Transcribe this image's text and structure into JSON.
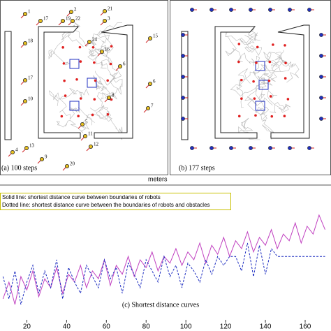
{
  "panels": [
    {
      "caption": "(a)  100 steps",
      "robot_labels": [
        "1",
        "17",
        "19",
        "2",
        "22",
        "21",
        "3",
        "24",
        "16",
        "18",
        "15",
        "17",
        "6",
        "6",
        "10",
        "8",
        "7",
        "5",
        "11",
        "12",
        "13",
        "4",
        "9",
        "20"
      ]
    },
    {
      "caption": "(b) 177 steps"
    }
  ],
  "axis_unit": "meters",
  "chart_data": {
    "type": "line",
    "title": "(c) Shortest distance curves",
    "x": [
      8,
      11,
      14,
      17,
      20,
      23,
      26,
      29,
      32,
      35,
      38,
      41,
      44,
      47,
      50,
      53,
      56,
      59,
      62,
      65,
      68,
      71,
      74,
      77,
      80,
      83,
      86,
      89,
      92,
      95,
      98,
      101,
      104,
      107,
      110,
      113,
      116,
      119,
      122,
      125,
      128,
      131,
      134,
      137,
      140,
      143,
      146,
      149,
      152,
      155,
      158,
      161,
      164,
      167,
      170
    ],
    "series": [
      {
        "name": "Solid line: shortest distance curve between boundaries of robots",
        "color": "#c040c0",
        "style": "solid",
        "values": [
          20,
          35,
          15,
          40,
          28,
          45,
          22,
          38,
          30,
          48,
          25,
          42,
          35,
          50,
          30,
          45,
          38,
          55,
          32,
          50,
          42,
          58,
          40,
          55,
          48,
          62,
          45,
          58,
          52,
          65,
          50,
          62,
          55,
          70,
          52,
          68,
          60,
          75,
          58,
          72,
          65,
          80,
          62,
          75,
          68,
          82,
          65,
          78,
          72,
          88,
          70,
          85,
          78,
          95,
          82
        ]
      },
      {
        "name": "Dotted line: shortest distance curve between the boundaries of robots and obstacles",
        "color": "#1c2cc0",
        "style": "dotted",
        "values": [
          40,
          20,
          45,
          15,
          35,
          50,
          25,
          45,
          30,
          55,
          20,
          48,
          35,
          25,
          50,
          40,
          30,
          55,
          38,
          48,
          25,
          52,
          42,
          30,
          55,
          45,
          35,
          58,
          40,
          50,
          30,
          52,
          45,
          35,
          55,
          42,
          58,
          50,
          58,
          58,
          45,
          70,
          40,
          68,
          42,
          65,
          58,
          58,
          58,
          58,
          58,
          58,
          58,
          58,
          58
        ]
      }
    ],
    "xlim": [
      6.5,
      173
    ],
    "xticks": [
      20,
      40,
      60,
      80,
      100,
      120,
      140,
      160
    ],
    "ylim": [
      0,
      100
    ]
  }
}
